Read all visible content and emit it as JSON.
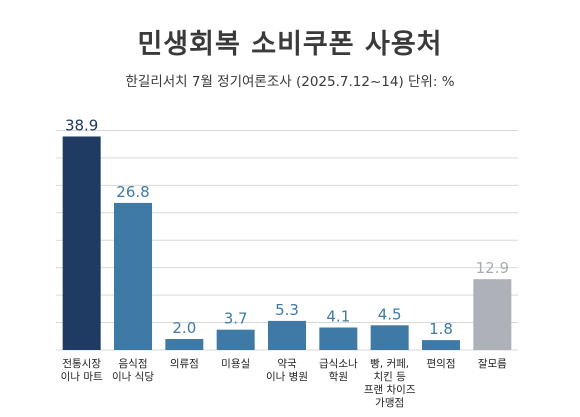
{
  "chart_data": {
    "type": "bar",
    "title": "민생회복 소비쿠폰 사용처",
    "subtitle": "한길리서치 7월 정기여론조사 (2025.7.12~14) 단위: %",
    "categories": [
      [
        "전통시장",
        "이나 마트"
      ],
      [
        "음식점",
        "이나 식당"
      ],
      [
        "의류점"
      ],
      [
        "미용실"
      ],
      [
        "약국",
        "이나 병원"
      ],
      [
        "급식소나",
        "학원"
      ],
      [
        "빵, 커페,",
        "치킨 등",
        "프랜 차이즈",
        "가맹점"
      ],
      [
        "편의점"
      ],
      [
        "잘모름"
      ]
    ],
    "values": [
      38.9,
      26.8,
      2.0,
      3.7,
      5.3,
      4.1,
      4.5,
      1.8,
      12.9
    ],
    "value_labels": [
      "38.9",
      "26.8",
      "2.0",
      "3.7",
      "5.3",
      "4.1",
      "4.5",
      "1.8",
      "12.9"
    ],
    "ylim": [
      0,
      45
    ],
    "grid": true,
    "colors": {
      "highlight": "#1f3a63",
      "default": "#3f7aa6",
      "unknown": "#aeb2b8",
      "value_default": "#3f7aa6",
      "value_highlight": "#1f3a63",
      "value_unknown": "#a9adb2",
      "grid": "#d9d9d9"
    }
  }
}
